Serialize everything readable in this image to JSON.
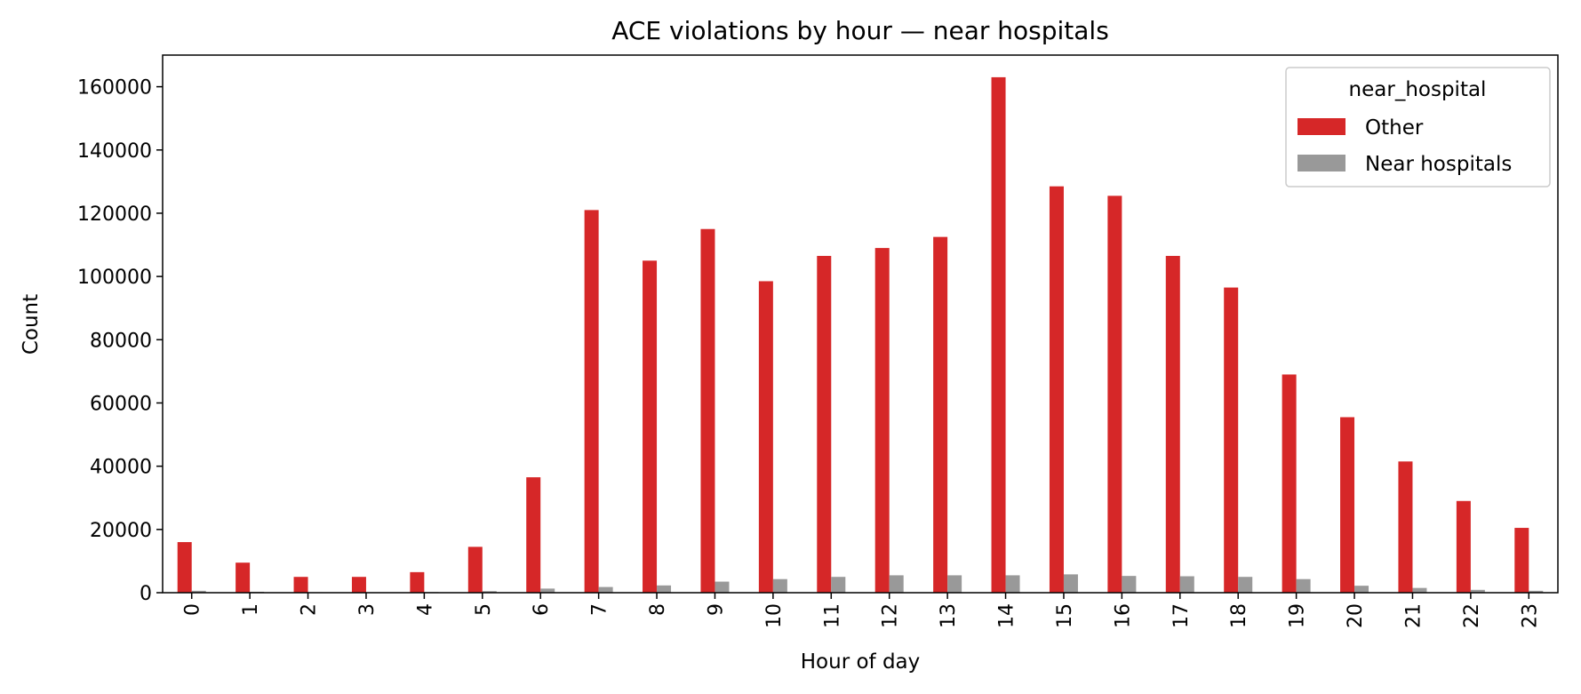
{
  "chart_data": {
    "type": "bar",
    "title": "ACE violations by hour — near hospitals",
    "xlabel": "Hour of day",
    "ylabel": "Count",
    "ylim": [
      0,
      170000
    ],
    "yticks": [
      0,
      20000,
      40000,
      60000,
      80000,
      100000,
      120000,
      140000,
      160000
    ],
    "categories": [
      "0",
      "1",
      "2",
      "3",
      "4",
      "5",
      "6",
      "7",
      "8",
      "9",
      "10",
      "11",
      "12",
      "13",
      "14",
      "15",
      "16",
      "17",
      "18",
      "19",
      "20",
      "21",
      "22",
      "23"
    ],
    "legend": {
      "title": "near_hospital",
      "placement": "top-right"
    },
    "grid": false,
    "series": [
      {
        "name": "Other",
        "color": "#d62728",
        "values": [
          16000,
          9500,
          5000,
          5000,
          6500,
          14500,
          36500,
          121000,
          105000,
          115000,
          98500,
          106500,
          109000,
          112500,
          163000,
          128500,
          125500,
          106500,
          96500,
          69000,
          55500,
          41500,
          29000,
          20500
        ]
      },
      {
        "name": "Near hospitals",
        "color": "#999999",
        "values": [
          600,
          300,
          150,
          150,
          200,
          500,
          1300,
          1800,
          2300,
          3500,
          4300,
          5000,
          5500,
          5500,
          5500,
          5800,
          5300,
          5200,
          5000,
          4300,
          2200,
          1500,
          900,
          600
        ]
      }
    ]
  }
}
